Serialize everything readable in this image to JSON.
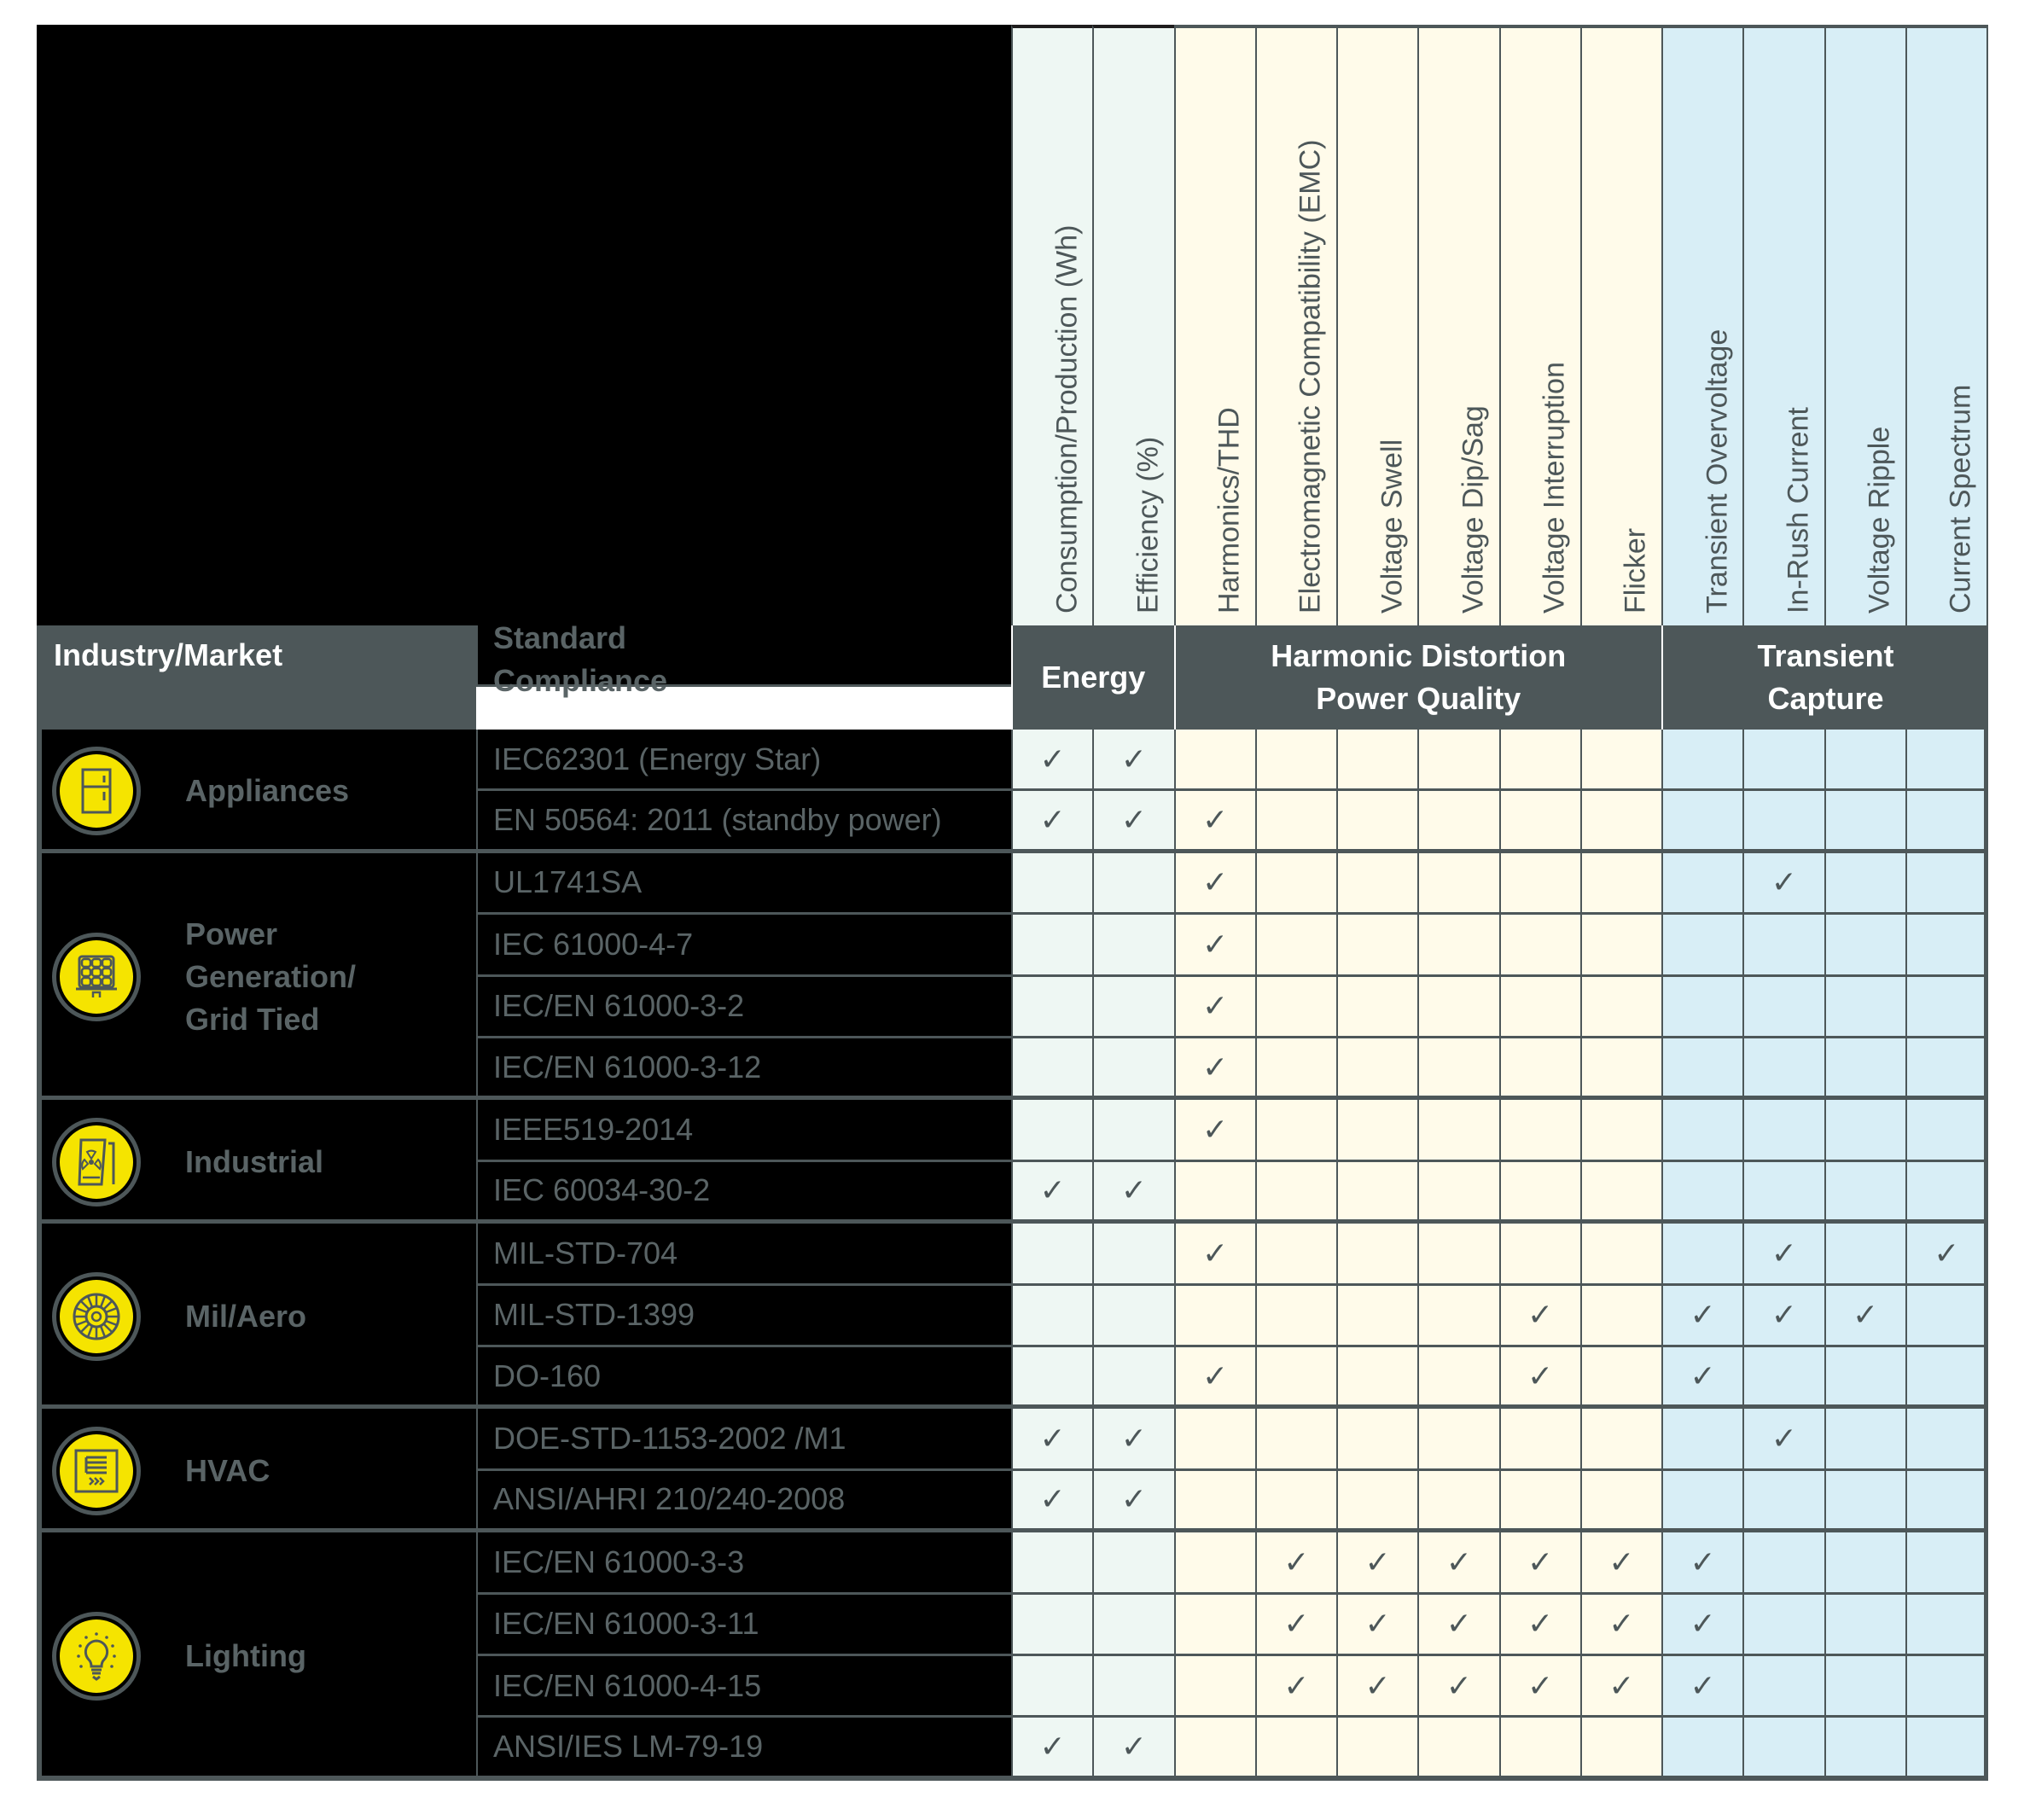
{
  "header": {
    "industry_label": "Industry/Market",
    "standard_label_1": "Standard",
    "standard_label_2": "Compliance",
    "groups": [
      {
        "line1": "Energy",
        "line2": ""
      },
      {
        "line1": "Harmonic Distortion",
        "line2": "Power Quality"
      },
      {
        "line1": "Transient",
        "line2": "Capture"
      }
    ]
  },
  "columns": [
    {
      "label": "Consumption/Production (Wh)",
      "group": "energy"
    },
    {
      "label": "Efficiency (%)",
      "group": "energy"
    },
    {
      "label": "Harmonics/THD",
      "group": "harmonic"
    },
    {
      "label": "Electromagnetic Compatibility (EMC)",
      "group": "harmonic"
    },
    {
      "label": "Voltage Swell",
      "group": "harmonic"
    },
    {
      "label": "Voltage Dip/Sag",
      "group": "harmonic"
    },
    {
      "label": "Voltage Interruption",
      "group": "harmonic"
    },
    {
      "label": "Flicker",
      "group": "harmonic"
    },
    {
      "label": "Transient Overvoltage",
      "group": "transient"
    },
    {
      "label": "In-Rush Current",
      "group": "transient"
    },
    {
      "label": "Voltage Ripple",
      "group": "transient"
    },
    {
      "label": "Current Spectrum",
      "group": "transient"
    }
  ],
  "colors": {
    "header_bg": "#4d5759",
    "energy_bg": "#eef7f3",
    "harmonic_bg": "#fffbea",
    "transient_bg": "#d8eef6",
    "icon_yellow": "#f5e400",
    "text_gray": "#5a6466"
  },
  "check_glyph": "✓",
  "industries": [
    {
      "name": "Appliances",
      "icon": "refrigerator-icon",
      "rows": 2
    },
    {
      "name": "Power Generation/ Grid Tied",
      "icon": "solar-panel-icon",
      "rows": 4
    },
    {
      "name": "Industrial",
      "icon": "nuclear-plant-icon",
      "rows": 2
    },
    {
      "name": "Mil/Aero",
      "icon": "turbine-icon",
      "rows": 3
    },
    {
      "name": "HVAC",
      "icon": "heater-icon",
      "rows": 2
    },
    {
      "name": "Lighting",
      "icon": "lightbulb-icon",
      "rows": 4
    }
  ],
  "standards": [
    {
      "name": "IEC62301 (Energy Star)",
      "checks": [
        1,
        1,
        0,
        0,
        0,
        0,
        0,
        0,
        0,
        0,
        0,
        0
      ]
    },
    {
      "name": "EN 50564: 2011 (standby power)",
      "checks": [
        1,
        1,
        1,
        0,
        0,
        0,
        0,
        0,
        0,
        0,
        0,
        0
      ]
    },
    {
      "name": "UL1741SA",
      "checks": [
        0,
        0,
        1,
        0,
        0,
        0,
        0,
        0,
        0,
        1,
        0,
        0
      ]
    },
    {
      "name": "IEC 61000-4-7",
      "checks": [
        0,
        0,
        1,
        0,
        0,
        0,
        0,
        0,
        0,
        0,
        0,
        0
      ]
    },
    {
      "name": "IEC/EN 61000-3-2",
      "checks": [
        0,
        0,
        1,
        0,
        0,
        0,
        0,
        0,
        0,
        0,
        0,
        0
      ]
    },
    {
      "name": "IEC/EN 61000-3-12",
      "checks": [
        0,
        0,
        1,
        0,
        0,
        0,
        0,
        0,
        0,
        0,
        0,
        0
      ]
    },
    {
      "name": "IEEE519-2014",
      "checks": [
        0,
        0,
        1,
        0,
        0,
        0,
        0,
        0,
        0,
        0,
        0,
        0
      ]
    },
    {
      "name": "IEC 60034-30-2",
      "checks": [
        1,
        1,
        0,
        0,
        0,
        0,
        0,
        0,
        0,
        0,
        0,
        0
      ]
    },
    {
      "name": "MIL-STD-704",
      "checks": [
        0,
        0,
        1,
        0,
        0,
        0,
        0,
        0,
        0,
        1,
        0,
        1
      ]
    },
    {
      "name": "MIL-STD-1399",
      "checks": [
        0,
        0,
        0,
        0,
        0,
        0,
        1,
        0,
        1,
        1,
        1,
        0
      ]
    },
    {
      "name": "DO-160",
      "checks": [
        0,
        0,
        1,
        0,
        0,
        0,
        1,
        0,
        1,
        0,
        0,
        0
      ]
    },
    {
      "name": "DOE-STD-1153-2002 /M1",
      "checks": [
        1,
        1,
        0,
        0,
        0,
        0,
        0,
        0,
        0,
        1,
        0,
        0
      ]
    },
    {
      "name": "ANSI/AHRI 210/240-2008",
      "checks": [
        1,
        1,
        0,
        0,
        0,
        0,
        0,
        0,
        0,
        0,
        0,
        0
      ]
    },
    {
      "name": "IEC/EN 61000-3-3",
      "checks": [
        0,
        0,
        0,
        1,
        1,
        1,
        1,
        1,
        1,
        0,
        0,
        0
      ]
    },
    {
      "name": "IEC/EN 61000-3-11",
      "checks": [
        0,
        0,
        0,
        1,
        1,
        1,
        1,
        1,
        1,
        0,
        0,
        0
      ]
    },
    {
      "name": "IEC/EN 61000-4-15",
      "checks": [
        0,
        0,
        0,
        1,
        1,
        1,
        1,
        1,
        1,
        0,
        0,
        0
      ]
    },
    {
      "name": "ANSI/IES LM-79-19",
      "checks": [
        1,
        1,
        0,
        0,
        0,
        0,
        0,
        0,
        0,
        0,
        0,
        0
      ]
    }
  ]
}
